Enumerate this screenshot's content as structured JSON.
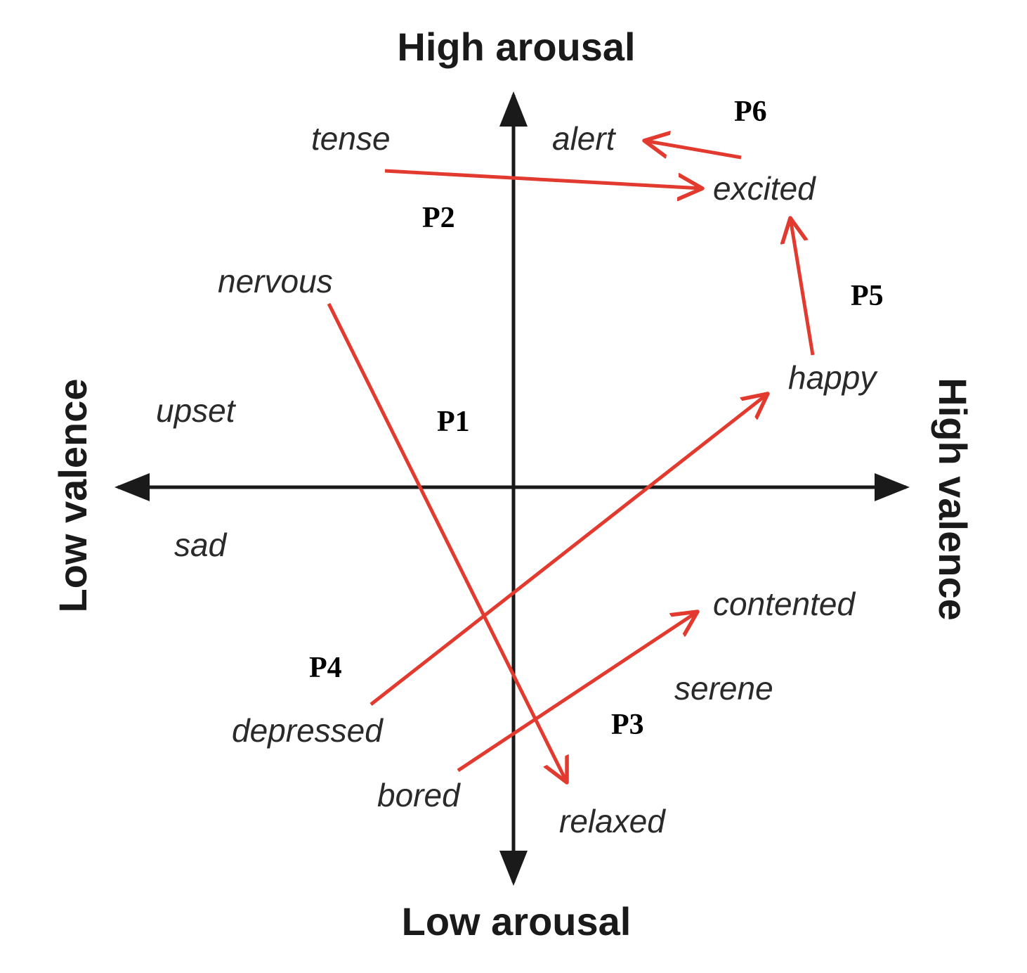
{
  "axes": {
    "top": "High arousal",
    "bottom": "Low arousal",
    "left": "Low valence",
    "right": "High valence"
  },
  "emotions": {
    "tense": "tense",
    "alert": "alert",
    "excited": "excited",
    "nervous": "nervous",
    "happy": "happy",
    "upset": "upset",
    "sad": "sad",
    "contented": "contented",
    "serene": "serene",
    "depressed": "depressed",
    "bored": "bored",
    "relaxed": "relaxed"
  },
  "paths": [
    {
      "label": "P1",
      "from": "nervous",
      "to": "relaxed"
    },
    {
      "label": "P2",
      "from": "tense",
      "to": "excited"
    },
    {
      "label": "P3",
      "from": "bored",
      "to": "contented"
    },
    {
      "label": "P4",
      "from": "depressed",
      "to": "happy"
    },
    {
      "label": "P5",
      "from": "happy",
      "to": "excited"
    },
    {
      "label": "P6",
      "from": "excited",
      "to": "alert"
    }
  ],
  "colors": {
    "axis": "#1a1a1a",
    "path": "#e23a2e",
    "text": "#2a2a2a"
  }
}
